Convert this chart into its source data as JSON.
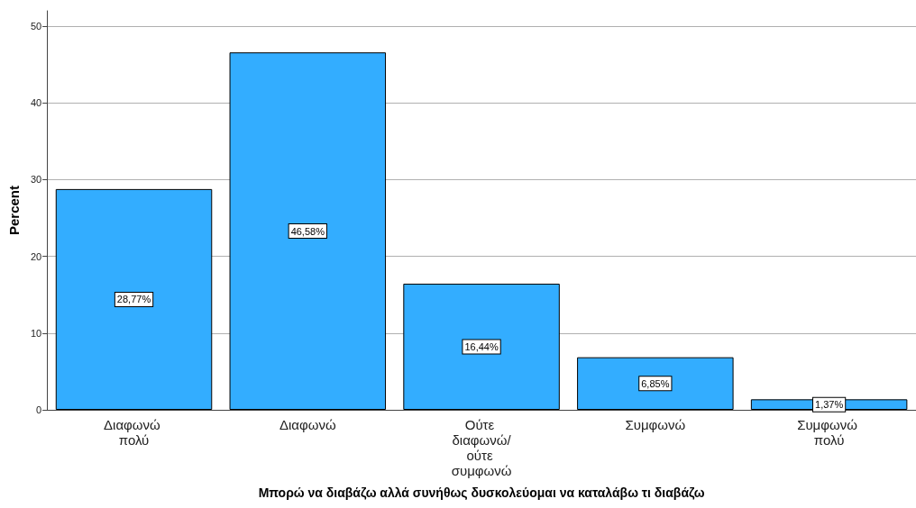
{
  "chart_data": {
    "type": "bar",
    "xlabel": "Μπορώ να διαβάζω αλλά συνήθως δυσκολεύομαι να καταλάβω τι διαβάζω",
    "ylabel": "Percent",
    "categories": [
      "Διαφωνώ πολύ",
      "Διαφωνώ",
      "Ούτε διαφωνώ/ούτε συμφωνώ",
      "Συμφωνώ",
      "Συμφωνώ πολύ"
    ],
    "values": [
      28.77,
      46.58,
      16.44,
      6.85,
      1.37
    ],
    "value_labels": [
      "28,77%",
      "46,58%",
      "16,44%",
      "6,85%",
      "1,37%"
    ],
    "color": "#33adff",
    "ylim": [
      0,
      52
    ],
    "yticks": [
      0,
      10,
      20,
      30,
      40,
      50
    ],
    "grid": "y"
  }
}
